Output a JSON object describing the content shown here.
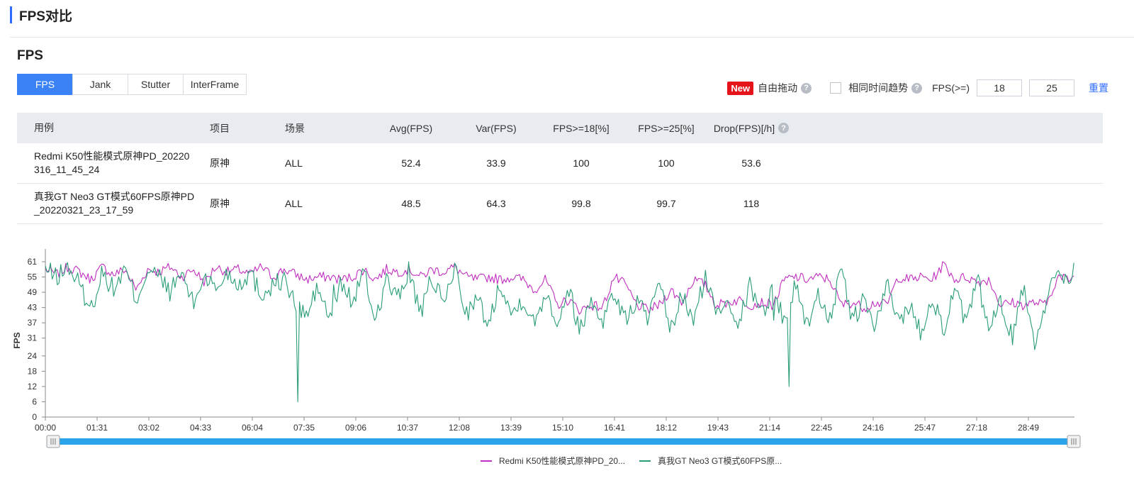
{
  "page": {
    "title": "FPS对比"
  },
  "section": {
    "title": "FPS"
  },
  "tabs": [
    {
      "label": "FPS",
      "active": true
    },
    {
      "label": "Jank",
      "active": false
    },
    {
      "label": "Stutter",
      "active": false
    },
    {
      "label": "InterFrame",
      "active": false
    }
  ],
  "controls": {
    "new_badge": "New",
    "free_drag_label": "自由拖动",
    "same_time_trend_label": "相同时间趋势",
    "same_time_trend_checked": false,
    "fps_threshold_label": "FPS(>=)",
    "fps_threshold_1": "18",
    "fps_threshold_2": "25",
    "reset_label": "重置",
    "help_glyph": "?"
  },
  "table": {
    "headers": [
      "用例",
      "项目",
      "场景",
      "Avg(FPS)",
      "Var(FPS)",
      "FPS>=18[%]",
      "FPS>=25[%]",
      "Drop(FPS)[/h]"
    ],
    "rows": [
      {
        "case_line1": "Redmi K50性能模式原神PD_20220",
        "case_line2": "316_11_45_24",
        "project": "原神",
        "scene": "ALL",
        "avg": "52.4",
        "var": "33.9",
        "ge18": "100",
        "ge25": "100",
        "drop": "53.6"
      },
      {
        "case_line1": "真我GT Neo3 GT模式60FPS原神PD",
        "case_line2": "_20220321_23_17_59",
        "project": "原神",
        "scene": "ALL",
        "avg": "48.5",
        "var": "64.3",
        "ge18": "99.8",
        "ge25": "99.7",
        "drop": "118"
      }
    ]
  },
  "legend": [
    {
      "name": "Redmi K50性能模式原神PD_20...",
      "color": "#c02fbf"
    },
    {
      "name": "真我GT Neo3 GT模式60FPS原...",
      "color": "#2a9d78"
    }
  ],
  "chart_data": {
    "type": "line",
    "ylabel": "FPS",
    "xlabel": "",
    "y_ticks": [
      0,
      6,
      12,
      18,
      24,
      31,
      37,
      43,
      49,
      55,
      61
    ],
    "ylim": [
      0,
      64
    ],
    "x_tick_labels": [
      "00:00",
      "01:31",
      "03:02",
      "04:33",
      "06:04",
      "07:35",
      "09:06",
      "10:37",
      "12:08",
      "13:39",
      "15:10",
      "16:41",
      "18:12",
      "19:43",
      "21:14",
      "22:45",
      "24:16",
      "25:47",
      "27:18",
      "28:49"
    ],
    "x_unit": "seconds",
    "x_tick_step": 91,
    "x_max": 1810,
    "grid": false,
    "legend_position": "bottom-center",
    "series": [
      {
        "name": "Redmi K50性能模式原神PD_20...",
        "color": "#c02fbf",
        "points": [
          [
            0,
            58
          ],
          [
            20,
            56
          ],
          [
            40,
            59
          ],
          [
            60,
            57
          ],
          [
            80,
            54
          ],
          [
            100,
            59
          ],
          [
            120,
            56
          ],
          [
            140,
            58
          ],
          [
            160,
            50
          ],
          [
            180,
            58
          ],
          [
            200,
            57
          ],
          [
            220,
            59
          ],
          [
            240,
            55
          ],
          [
            260,
            58
          ],
          [
            280,
            53
          ],
          [
            300,
            59
          ],
          [
            320,
            57
          ],
          [
            340,
            58
          ],
          [
            360,
            56
          ],
          [
            380,
            59
          ],
          [
            400,
            55
          ],
          [
            420,
            58
          ],
          [
            440,
            56
          ],
          [
            460,
            54
          ],
          [
            480,
            55
          ],
          [
            500,
            55
          ],
          [
            520,
            54
          ],
          [
            540,
            55
          ],
          [
            560,
            58
          ],
          [
            580,
            54
          ],
          [
            600,
            58
          ],
          [
            620,
            57
          ],
          [
            640,
            58
          ],
          [
            660,
            55
          ],
          [
            680,
            58
          ],
          [
            700,
            57
          ],
          [
            720,
            59
          ],
          [
            740,
            55
          ],
          [
            760,
            54
          ],
          [
            780,
            55
          ],
          [
            800,
            54
          ],
          [
            820,
            55
          ],
          [
            840,
            54
          ],
          [
            860,
            50
          ],
          [
            880,
            54
          ],
          [
            900,
            44
          ],
          [
            920,
            46
          ],
          [
            940,
            42
          ],
          [
            960,
            44
          ],
          [
            980,
            43
          ],
          [
            1000,
            55
          ],
          [
            1020,
            52
          ],
          [
            1040,
            44
          ],
          [
            1060,
            42
          ],
          [
            1080,
            44
          ],
          [
            1100,
            50
          ],
          [
            1120,
            45
          ],
          [
            1140,
            54
          ],
          [
            1160,
            52
          ],
          [
            1180,
            44
          ],
          [
            1200,
            45
          ],
          [
            1220,
            46
          ],
          [
            1240,
            44
          ],
          [
            1260,
            45
          ],
          [
            1280,
            44
          ],
          [
            1300,
            54
          ],
          [
            1320,
            55
          ],
          [
            1340,
            54
          ],
          [
            1360,
            55
          ],
          [
            1380,
            54
          ],
          [
            1400,
            44
          ],
          [
            1420,
            45
          ],
          [
            1440,
            43
          ],
          [
            1460,
            45
          ],
          [
            1480,
            44
          ],
          [
            1500,
            55
          ],
          [
            1520,
            54
          ],
          [
            1540,
            55
          ],
          [
            1560,
            54
          ],
          [
            1580,
            60
          ],
          [
            1600,
            54
          ],
          [
            1620,
            55
          ],
          [
            1640,
            53
          ],
          [
            1660,
            54
          ],
          [
            1680,
            44
          ],
          [
            1700,
            45
          ],
          [
            1720,
            44
          ],
          [
            1740,
            45
          ],
          [
            1760,
            44
          ],
          [
            1780,
            55
          ],
          [
            1800,
            54
          ],
          [
            1810,
            55
          ]
        ]
      },
      {
        "name": "真我GT Neo3 GT模式60FPS原...",
        "color": "#2a9d78",
        "points": [
          [
            0,
            58
          ],
          [
            20,
            55
          ],
          [
            40,
            59
          ],
          [
            60,
            52
          ],
          [
            80,
            42
          ],
          [
            100,
            57
          ],
          [
            120,
            50
          ],
          [
            140,
            58
          ],
          [
            160,
            46
          ],
          [
            180,
            58
          ],
          [
            200,
            55
          ],
          [
            220,
            49
          ],
          [
            240,
            57
          ],
          [
            260,
            44
          ],
          [
            280,
            56
          ],
          [
            300,
            50
          ],
          [
            320,
            57
          ],
          [
            340,
            52
          ],
          [
            360,
            57
          ],
          [
            380,
            48
          ],
          [
            400,
            52
          ],
          [
            420,
            54
          ],
          [
            440,
            44
          ],
          [
            460,
            40
          ],
          [
            480,
            51
          ],
          [
            500,
            38
          ],
          [
            520,
            53
          ],
          [
            540,
            45
          ],
          [
            560,
            57
          ],
          [
            580,
            38
          ],
          [
            600,
            54
          ],
          [
            620,
            46
          ],
          [
            640,
            58
          ],
          [
            660,
            40
          ],
          [
            680,
            55
          ],
          [
            700,
            44
          ],
          [
            720,
            59
          ],
          [
            740,
            41
          ],
          [
            760,
            46
          ],
          [
            780,
            36
          ],
          [
            800,
            54
          ],
          [
            820,
            40
          ],
          [
            840,
            47
          ],
          [
            860,
            36
          ],
          [
            880,
            50
          ],
          [
            900,
            37
          ],
          [
            920,
            51
          ],
          [
            940,
            34
          ],
          [
            960,
            46
          ],
          [
            980,
            38
          ],
          [
            1000,
            49
          ],
          [
            1020,
            38
          ],
          [
            1040,
            46
          ],
          [
            1060,
            39
          ],
          [
            1080,
            51
          ],
          [
            1100,
            34
          ],
          [
            1120,
            48
          ],
          [
            1140,
            37
          ],
          [
            1160,
            55
          ],
          [
            1180,
            41
          ],
          [
            1200,
            47
          ],
          [
            1220,
            37
          ],
          [
            1240,
            52
          ],
          [
            1260,
            41
          ],
          [
            1280,
            50
          ],
          [
            1300,
            38
          ],
          [
            1320,
            52
          ],
          [
            1340,
            36
          ],
          [
            1360,
            48
          ],
          [
            1380,
            39
          ],
          [
            1400,
            57
          ],
          [
            1420,
            38
          ],
          [
            1440,
            46
          ],
          [
            1460,
            35
          ],
          [
            1480,
            52
          ],
          [
            1500,
            38
          ],
          [
            1520,
            44
          ],
          [
            1540,
            33
          ],
          [
            1560,
            48
          ],
          [
            1580,
            34
          ],
          [
            1600,
            50
          ],
          [
            1620,
            36
          ],
          [
            1640,
            54
          ],
          [
            1660,
            33
          ],
          [
            1680,
            46
          ],
          [
            1700,
            31
          ],
          [
            1720,
            52
          ],
          [
            1740,
            30
          ],
          [
            1760,
            44
          ],
          [
            1780,
            59
          ],
          [
            1800,
            54
          ],
          [
            1810,
            58
          ]
        ],
        "dips": [
          [
            445,
            6
          ],
          [
            508,
            52
          ],
          [
            1280,
            38
          ],
          [
            1308,
            12
          ]
        ]
      }
    ]
  }
}
